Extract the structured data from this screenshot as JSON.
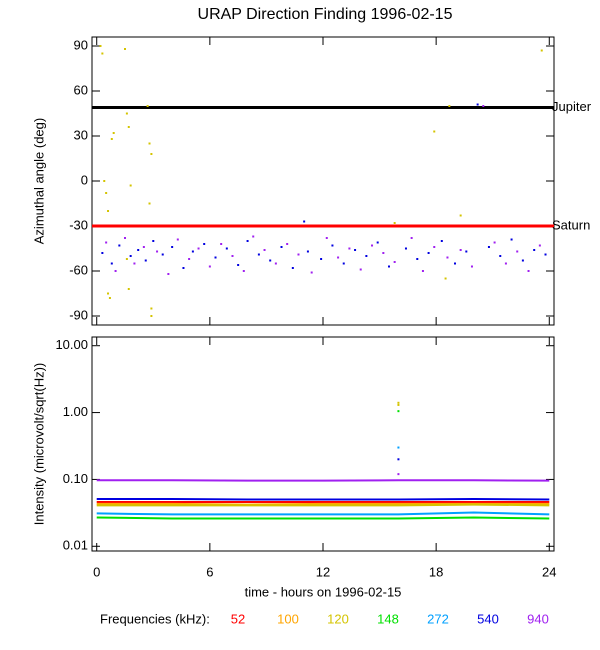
{
  "chart_data": [
    {
      "type": "scatter",
      "title": "URAP Direction Finding  1996-02-15",
      "y_label": "Azimuthal angle (deg)",
      "xlim": [
        -0.25,
        24.25
      ],
      "xticks": [
        0,
        6,
        12,
        18,
        24
      ],
      "ylim": [
        -96,
        96
      ],
      "yticks": [
        90,
        60,
        30,
        0,
        -30,
        -60,
        -90
      ],
      "hlines": [
        {
          "label": "Jupiter",
          "value": 49,
          "color": "#000000"
        },
        {
          "label": "Saturn",
          "value": -30,
          "color": "#ff0000"
        }
      ],
      "series": [
        {
          "color": "#d4c400",
          "x": [
            0.2,
            0.3,
            0.5,
            0.6,
            0.7,
            0.8,
            0.9,
            0.6,
            1.5,
            1.6,
            1.7,
            1.8,
            1.7,
            2.7,
            2.8,
            2.9,
            2.8,
            2.9,
            2.9,
            17.9,
            18.7,
            19.3,
            18.5,
            23.6,
            15.8,
            0.4,
            1.6
          ],
          "values": [
            90,
            85,
            -8,
            -75,
            -78,
            28,
            32,
            -20,
            88,
            45,
            36,
            -3,
            -72,
            50,
            -15,
            18,
            25,
            -85,
            -90,
            33,
            50,
            -23,
            -65,
            87,
            -28,
            0,
            -52
          ]
        },
        {
          "color": "#0000e0",
          "x": [
            0.3,
            0.8,
            1.2,
            1.8,
            2.2,
            2.6,
            3.0,
            3.5,
            4.0,
            4.6,
            5.1,
            5.7,
            6.3,
            6.9,
            7.5,
            8.0,
            8.6,
            9.2,
            9.8,
            10.4,
            11.0,
            11.2,
            11.9,
            12.5,
            13.1,
            13.7,
            14.3,
            14.9,
            15.5,
            16.4,
            17.0,
            17.6,
            18.3,
            19.0,
            19.6,
            20.2,
            20.8,
            21.4,
            22.0,
            22.6,
            23.2,
            23.8
          ],
          "values": [
            -48,
            -55,
            -43,
            -50,
            -46,
            -53,
            -40,
            -49,
            -44,
            -58,
            -47,
            -42,
            -51,
            -45,
            -56,
            -40,
            -49,
            -53,
            -44,
            -58,
            -27,
            -47,
            -52,
            -43,
            -55,
            -46,
            -50,
            -41,
            -57,
            -45,
            -52,
            -48,
            -40,
            -55,
            -47,
            51,
            -44,
            -50,
            -39,
            -53,
            -46,
            -49
          ]
        },
        {
          "color": "#a020f0",
          "x": [
            0.5,
            1.0,
            1.5,
            2.0,
            2.5,
            3.2,
            3.8,
            4.3,
            4.9,
            5.4,
            6.0,
            6.6,
            7.2,
            7.8,
            8.3,
            8.9,
            9.5,
            10.1,
            10.7,
            11.4,
            12.2,
            12.8,
            13.4,
            14.0,
            14.6,
            15.2,
            15.8,
            16.7,
            17.3,
            17.9,
            18.6,
            19.3,
            19.9,
            20.5,
            21.1,
            21.7,
            22.3,
            22.9,
            23.5
          ],
          "values": [
            -41,
            -60,
            -38,
            -55,
            -44,
            -47,
            -62,
            -39,
            -52,
            -45,
            -57,
            -42,
            -50,
            -60,
            -37,
            -46,
            -55,
            -42,
            -49,
            -61,
            -38,
            -51,
            -45,
            -59,
            -43,
            -48,
            -54,
            -38,
            -60,
            -44,
            -51,
            -46,
            -57,
            50,
            -41,
            -55,
            -47,
            -60,
            -43
          ]
        }
      ]
    },
    {
      "type": "line",
      "x_label": "time - hours on 1996-02-15",
      "y_label": "Intensity (microvolt/sqrt(Hz))",
      "log_y": true,
      "xlim": [
        -0.25,
        24.25
      ],
      "xticks": [
        0,
        6,
        12,
        18,
        24
      ],
      "ylim": [
        0.0085,
        13.5
      ],
      "yticks": [
        {
          "value": 10,
          "label": "10.00"
        },
        {
          "value": 1,
          "label": "1.00"
        },
        {
          "value": 0.1,
          "label": "0.10"
        },
        {
          "value": 0.01,
          "label": "0.01"
        }
      ],
      "legend_title": "Frequencies (kHz):",
      "series": [
        {
          "name": "52",
          "color": "#ff0000",
          "x": [
            0,
            4,
            8,
            12,
            16,
            20,
            24
          ],
          "values": [
            0.046,
            0.046,
            0.046,
            0.046,
            0.046,
            0.046,
            0.046
          ]
        },
        {
          "name": "100",
          "color": "#ffa500",
          "x": [
            0,
            4,
            8,
            12,
            16,
            20,
            24
          ],
          "values": [
            0.043,
            0.043,
            0.042,
            0.043,
            0.043,
            0.043,
            0.043
          ]
        },
        {
          "name": "120",
          "color": "#d4c400",
          "x": [
            0,
            4,
            8,
            12,
            16,
            20,
            24
          ],
          "values": [
            0.041,
            0.041,
            0.041,
            0.041,
            0.041,
            0.042,
            0.041
          ]
        },
        {
          "name": "148",
          "color": "#00e000",
          "x": [
            0,
            4,
            8,
            12,
            16,
            20,
            24
          ],
          "values": [
            0.027,
            0.026,
            0.026,
            0.026,
            0.026,
            0.027,
            0.026
          ]
        },
        {
          "name": "272",
          "color": "#00a0ff",
          "x": [
            0,
            4,
            8,
            12,
            16,
            20,
            24
          ],
          "values": [
            0.031,
            0.03,
            0.03,
            0.03,
            0.03,
            0.032,
            0.03
          ]
        },
        {
          "name": "540",
          "color": "#0000e0",
          "x": [
            0,
            4,
            8,
            12,
            16,
            20,
            24
          ],
          "values": [
            0.051,
            0.051,
            0.05,
            0.05,
            0.05,
            0.051,
            0.05
          ]
        },
        {
          "name": "940",
          "color": "#a020f0",
          "x": [
            0,
            4,
            8,
            12,
            16,
            20,
            24
          ],
          "values": [
            0.097,
            0.097,
            0.096,
            0.096,
            0.097,
            0.097,
            0.096
          ]
        }
      ],
      "points": [
        {
          "color": "#d4c400",
          "x": [
            16.0,
            16.0
          ],
          "values": [
            1.4,
            1.3
          ]
        },
        {
          "color": "#00e000",
          "x": [
            16.0
          ],
          "values": [
            1.05
          ]
        },
        {
          "color": "#00a0ff",
          "x": [
            16.0
          ],
          "values": [
            0.3
          ]
        },
        {
          "color": "#0000e0",
          "x": [
            16.0
          ],
          "values": [
            0.2
          ]
        },
        {
          "color": "#a020f0",
          "x": [
            16.0
          ],
          "values": [
            0.12
          ]
        }
      ]
    }
  ]
}
